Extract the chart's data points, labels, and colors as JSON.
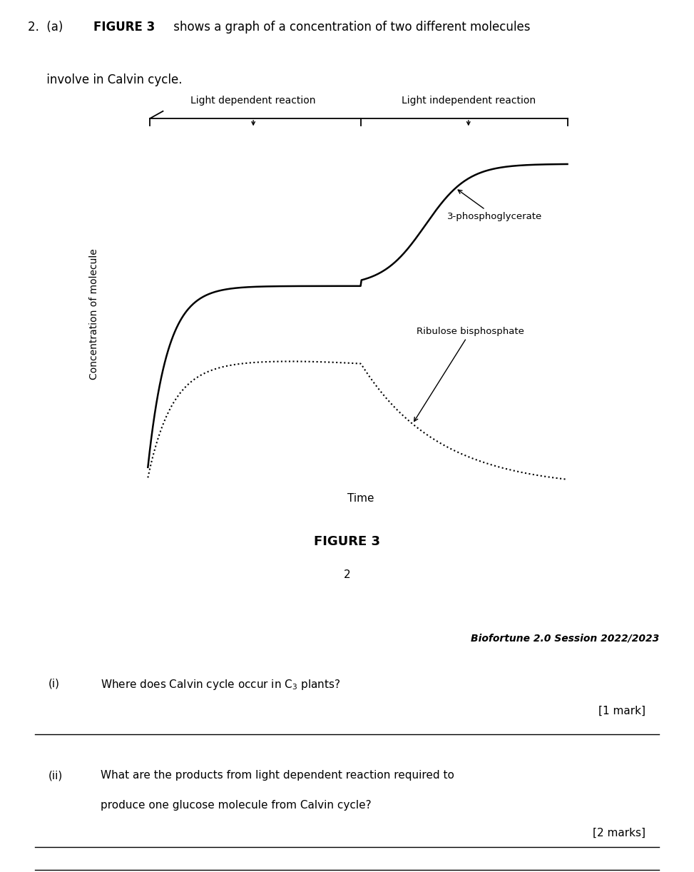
{
  "light_dep_label": "Light dependent reaction",
  "light_indep_label": "Light independent reaction",
  "xlabel": "Time",
  "ylabel": "Concentration of molecule",
  "figure_label": "FIGURE 3",
  "page_number": "2",
  "label_3pg": "3-phosphoglycerate",
  "label_rubp": "Ribulose bisphosphate",
  "biofortune": "Biofortune 2.0 Session 2022/2023",
  "black_bar_color": "#1a1a1a",
  "background_color": "#ffffff",
  "header_line1_pre": "2.  (a) ",
  "header_line1_bold": "FIGURE 3",
  "header_line1_post": " shows a graph of a concentration of two different molecules",
  "header_line2": "     involve in Calvin cycle.",
  "q_i_label": "(i)",
  "q_i_text_pre": "Where does Calvin cycle occur in C",
  "q_i_text_sub": "3",
  "q_i_text_post": " plants?",
  "q_i_mark": "[1 mark]",
  "q_ii_label": "(ii)",
  "q_ii_line1": "What are the products from light dependent reaction required to",
  "q_ii_line2": "produce one glucose molecule from Calvin cycle?",
  "q_ii_mark": "[2 marks]"
}
